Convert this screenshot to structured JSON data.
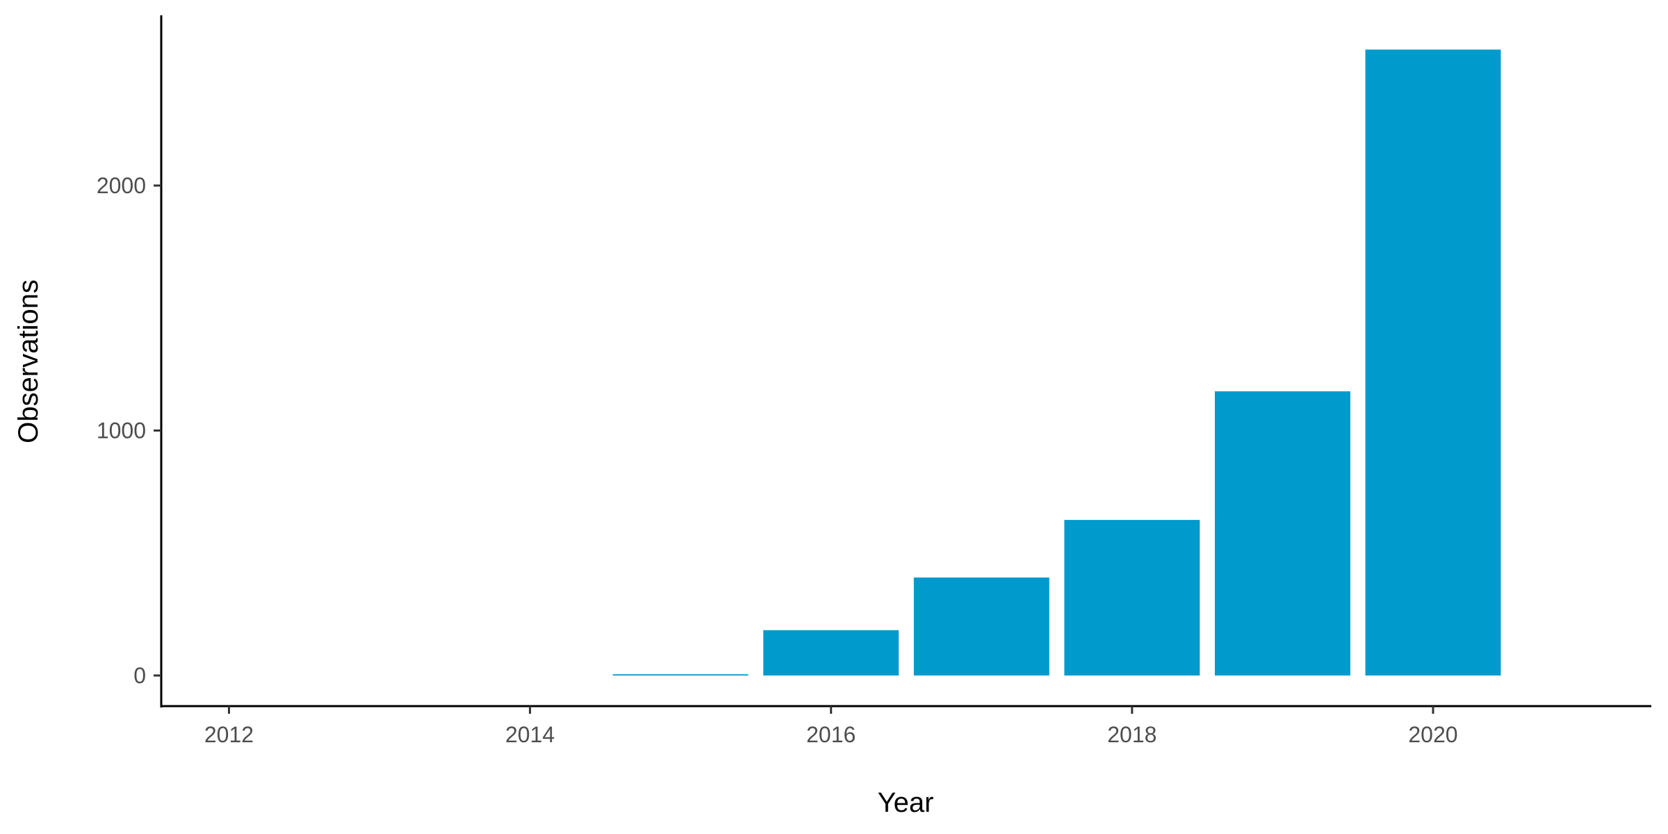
{
  "chart_data": {
    "type": "bar",
    "title": "",
    "xlabel": "Year",
    "ylabel": "Observations",
    "x": [
      2015,
      2016,
      2017,
      2018,
      2019,
      2020
    ],
    "values": [
      5,
      185,
      400,
      635,
      1160,
      2555
    ],
    "xlim": [
      2011.55,
      2021.45
    ],
    "ylim": [
      -125,
      2695
    ],
    "xticks": [
      "2012",
      "2014",
      "2016",
      "2018",
      "2020"
    ],
    "yticks": [
      "0",
      "1000",
      "2000"
    ],
    "bar_color": "#009ACD",
    "grid": false,
    "legend": "none"
  }
}
